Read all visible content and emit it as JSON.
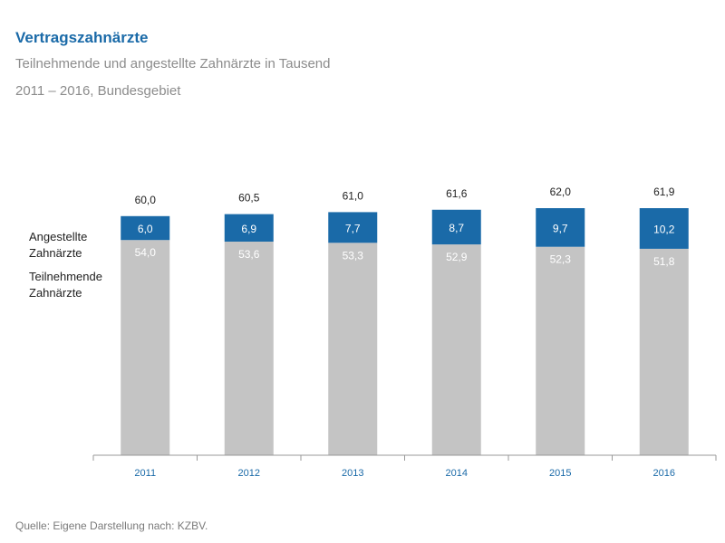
{
  "title": "Vertragszahnärzte",
  "subtitle": "Teilnehmende und angestellte Zahnärzte in Tausend",
  "subtitle2": "2011 – 2016, Bundesgebiet",
  "source": "Quelle: Eigene Darstellung nach: KZBV.",
  "colors": {
    "title": "#1a6aa8",
    "angestellte": "#1a6aa8",
    "teilnehmende": "#c4c4c4",
    "axis": "#999999"
  },
  "chart_data": {
    "type": "bar",
    "stacked": true,
    "categories": [
      "2011",
      "2012",
      "2013",
      "2014",
      "2015",
      "2016"
    ],
    "series": [
      {
        "name": "Teilnehmende Zahnärzte",
        "name_lines": [
          "Teilnehmende",
          "Zahnärzte"
        ],
        "values": [
          54.0,
          53.6,
          53.3,
          52.9,
          52.3,
          51.8
        ],
        "labels": [
          "54,0",
          "53,6",
          "53,3",
          "52,9",
          "52,3",
          "51,8"
        ]
      },
      {
        "name": "Angestellte Zahnärzte",
        "name_lines": [
          "Angestellte",
          "Zahnärzte"
        ],
        "values": [
          6.0,
          6.9,
          7.7,
          8.7,
          9.7,
          10.2
        ],
        "labels": [
          "6,0",
          "6,9",
          "7,7",
          "8,7",
          "9,7",
          "10,2"
        ]
      }
    ],
    "totals": [
      60.0,
      60.5,
      61.0,
      61.6,
      62.0,
      61.9
    ],
    "total_labels": [
      "60,0",
      "60,5",
      "61,0",
      "61,6",
      "62,0",
      "61,9"
    ],
    "ylim": [
      0,
      62
    ],
    "grid": false,
    "legend_placement": "left"
  }
}
